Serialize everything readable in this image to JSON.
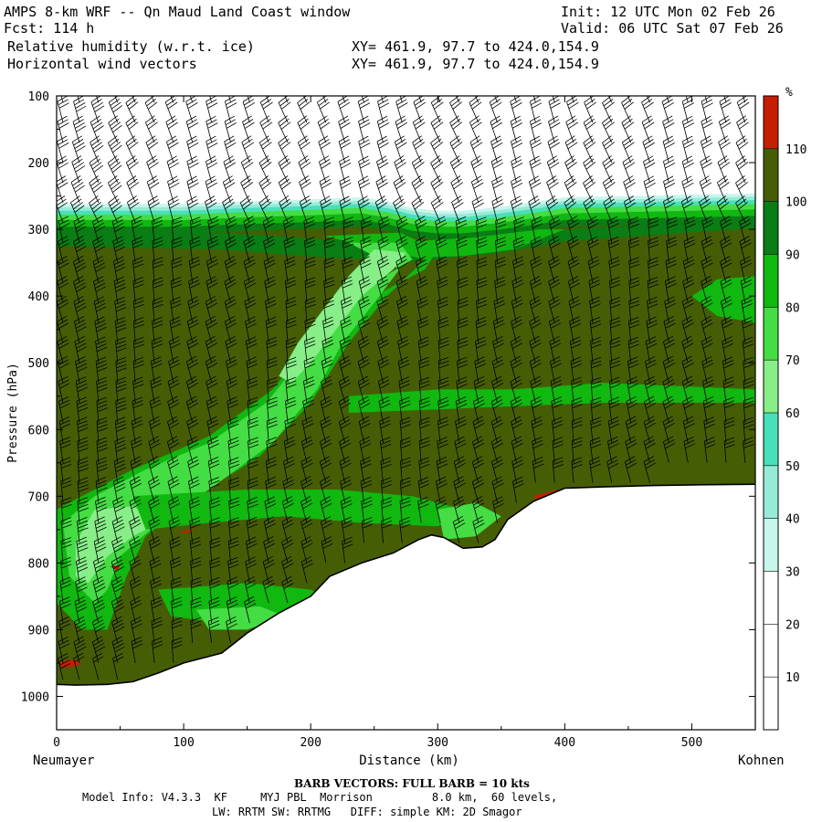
{
  "header": {
    "title": "AMPS 8-km WRF -- Qn Maud Land Coast window",
    "forecast": "Fcst: 114 h",
    "field1": "Relative humidity (w.r.t. ice)",
    "field2": "Horizontal wind vectors",
    "init": "Init: 12 UTC Mon 02 Feb 26",
    "valid": "Valid: 06 UTC Sat 07 Feb 26",
    "xy1": "XY= 461.9, 97.7 to 424.0,154.9",
    "xy2": "XY= 461.9, 97.7 to 424.0,154.9"
  },
  "footer": {
    "barb_note": "BARB VECTORS: FULL BARB = 10 kts",
    "model_line1": "Model Info: V4.3.3  KF     MYJ PBL  Morrison         8.0 km,  60 levels,",
    "model_line2": "LW: RRTM SW: RRTMG   DIFF: simple KM: 2D Smagor"
  },
  "chart_data": {
    "type": "heatmap",
    "xlabel": "Distance (km)",
    "ylabel": "Pressure (hPa)",
    "xlim": [
      0,
      550
    ],
    "ylim": [
      1050,
      100
    ],
    "x_ticks": [
      0,
      100,
      200,
      300,
      400,
      500
    ],
    "y_ticks": [
      100,
      200,
      300,
      400,
      500,
      600,
      700,
      800,
      900,
      1000
    ],
    "left_endpoint": "Neumayer",
    "right_endpoint": "Kohnen",
    "colorbar": {
      "unit": "%",
      "levels": [
        10,
        20,
        30,
        40,
        50,
        60,
        70,
        80,
        90,
        100,
        110
      ],
      "colors": [
        "#ffffff",
        "#ffffff",
        "#ffffff",
        "#c8f5ec",
        "#96ead8",
        "#48e0b8",
        "#88ee88",
        "#44dd44",
        "#10b810",
        "#0a7d14",
        "#455e06",
        "#c81e00"
      ]
    },
    "colors": {
      "dry": "#ffffff",
      "rh_30_40": "#c8f5ec",
      "rh_40_50": "#96ead8",
      "rh_50_60": "#48e0b8",
      "rh_60_70": "#88ee88",
      "rh_70_80": "#44dd44",
      "rh_80_90": "#10b810",
      "rh_90_100": "#0a7d14",
      "rh_100_110": "#455e06",
      "rh_above_110": "#c81e00"
    },
    "terrain": {
      "x_km": [
        0,
        15,
        40,
        60,
        80,
        100,
        130,
        150,
        175,
        200,
        215,
        240,
        265,
        285,
        295,
        305,
        320,
        335,
        345,
        355,
        375,
        400,
        430,
        470,
        500,
        550
      ],
      "p_hpa": [
        982,
        983,
        982,
        978,
        965,
        950,
        935,
        905,
        875,
        850,
        820,
        800,
        785,
        765,
        758,
        762,
        778,
        776,
        765,
        735,
        708,
        688,
        686,
        684,
        683,
        682
      ]
    },
    "moist_top": {
      "x_km": [
        0,
        50,
        100,
        150,
        200,
        240,
        260,
        280,
        300,
        320,
        350,
        380,
        400,
        450,
        500,
        550
      ],
      "p_hpa": [
        272,
        272,
        272,
        268,
        265,
        262,
        268,
        278,
        282,
        282,
        276,
        268,
        262,
        260,
        258,
        256
      ]
    },
    "barb_columns_km": [
      5,
      18,
      33,
      48,
      62,
      77,
      92,
      107,
      122,
      137,
      152,
      167,
      182,
      197,
      212,
      227,
      242,
      257,
      272,
      287,
      302,
      317,
      332,
      347,
      362,
      377,
      392,
      407,
      422,
      437,
      452,
      467,
      482,
      497,
      512,
      527,
      542
    ],
    "barb_levels_hpa": [
      110,
      140,
      170,
      200,
      230,
      260,
      290,
      320,
      350,
      380,
      410,
      440,
      470,
      500,
      530,
      560,
      590,
      620,
      650,
      680,
      710,
      740,
      770,
      800,
      830,
      860,
      890,
      920,
      950,
      975
    ]
  }
}
